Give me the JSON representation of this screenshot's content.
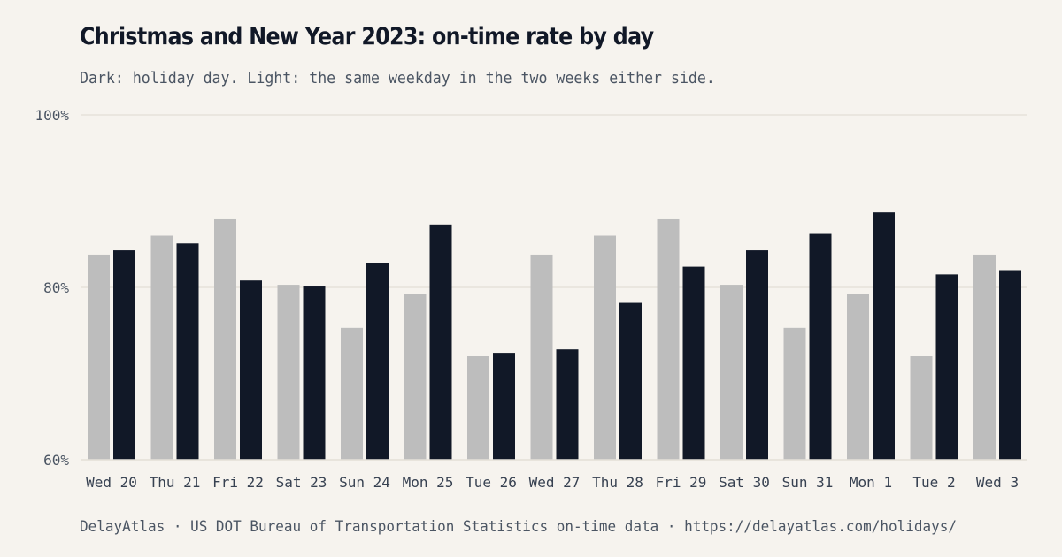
{
  "title": "Christmas and New Year 2023: on-time rate by day",
  "subtitle": "Dark: holiday day. Light: the same weekday in the two weeks either side.",
  "footer": "DelayAtlas · US DOT Bureau of Transportation Statistics on-time data · https://delayatlas.com/holidays/",
  "colors": {
    "background": "#f6f3ee",
    "baseline_series": "#bdbdbd",
    "holiday_series": "#111827",
    "gridline": "#e5e1da"
  },
  "chart_data": {
    "type": "bar",
    "categories": [
      "Wed 20",
      "Thu 21",
      "Fri 22",
      "Sat 23",
      "Sun 24",
      "Mon 25",
      "Tue 26",
      "Wed 27",
      "Thu 28",
      "Fri 29",
      "Sat 30",
      "Sun 31",
      "Mon 1",
      "Tue 2",
      "Wed 3"
    ],
    "series": [
      {
        "key": "baseline",
        "values": [
          83.8,
          86.0,
          87.9,
          80.3,
          75.3,
          79.2,
          72.0,
          83.8,
          86.0,
          87.9,
          80.3,
          75.3,
          79.2,
          72.0,
          83.8
        ]
      },
      {
        "key": "holiday",
        "values": [
          84.3,
          85.1,
          80.8,
          80.1,
          82.8,
          87.3,
          72.4,
          72.8,
          78.2,
          82.4,
          84.3,
          86.2,
          88.7,
          81.5,
          82.0
        ]
      }
    ],
    "ylim": [
      60,
      100
    ],
    "yticks": [
      60,
      80,
      100
    ],
    "ytick_labels": [
      "60%",
      "80%",
      "100%"
    ],
    "grid": true,
    "xlabel": "",
    "ylabel": ""
  }
}
